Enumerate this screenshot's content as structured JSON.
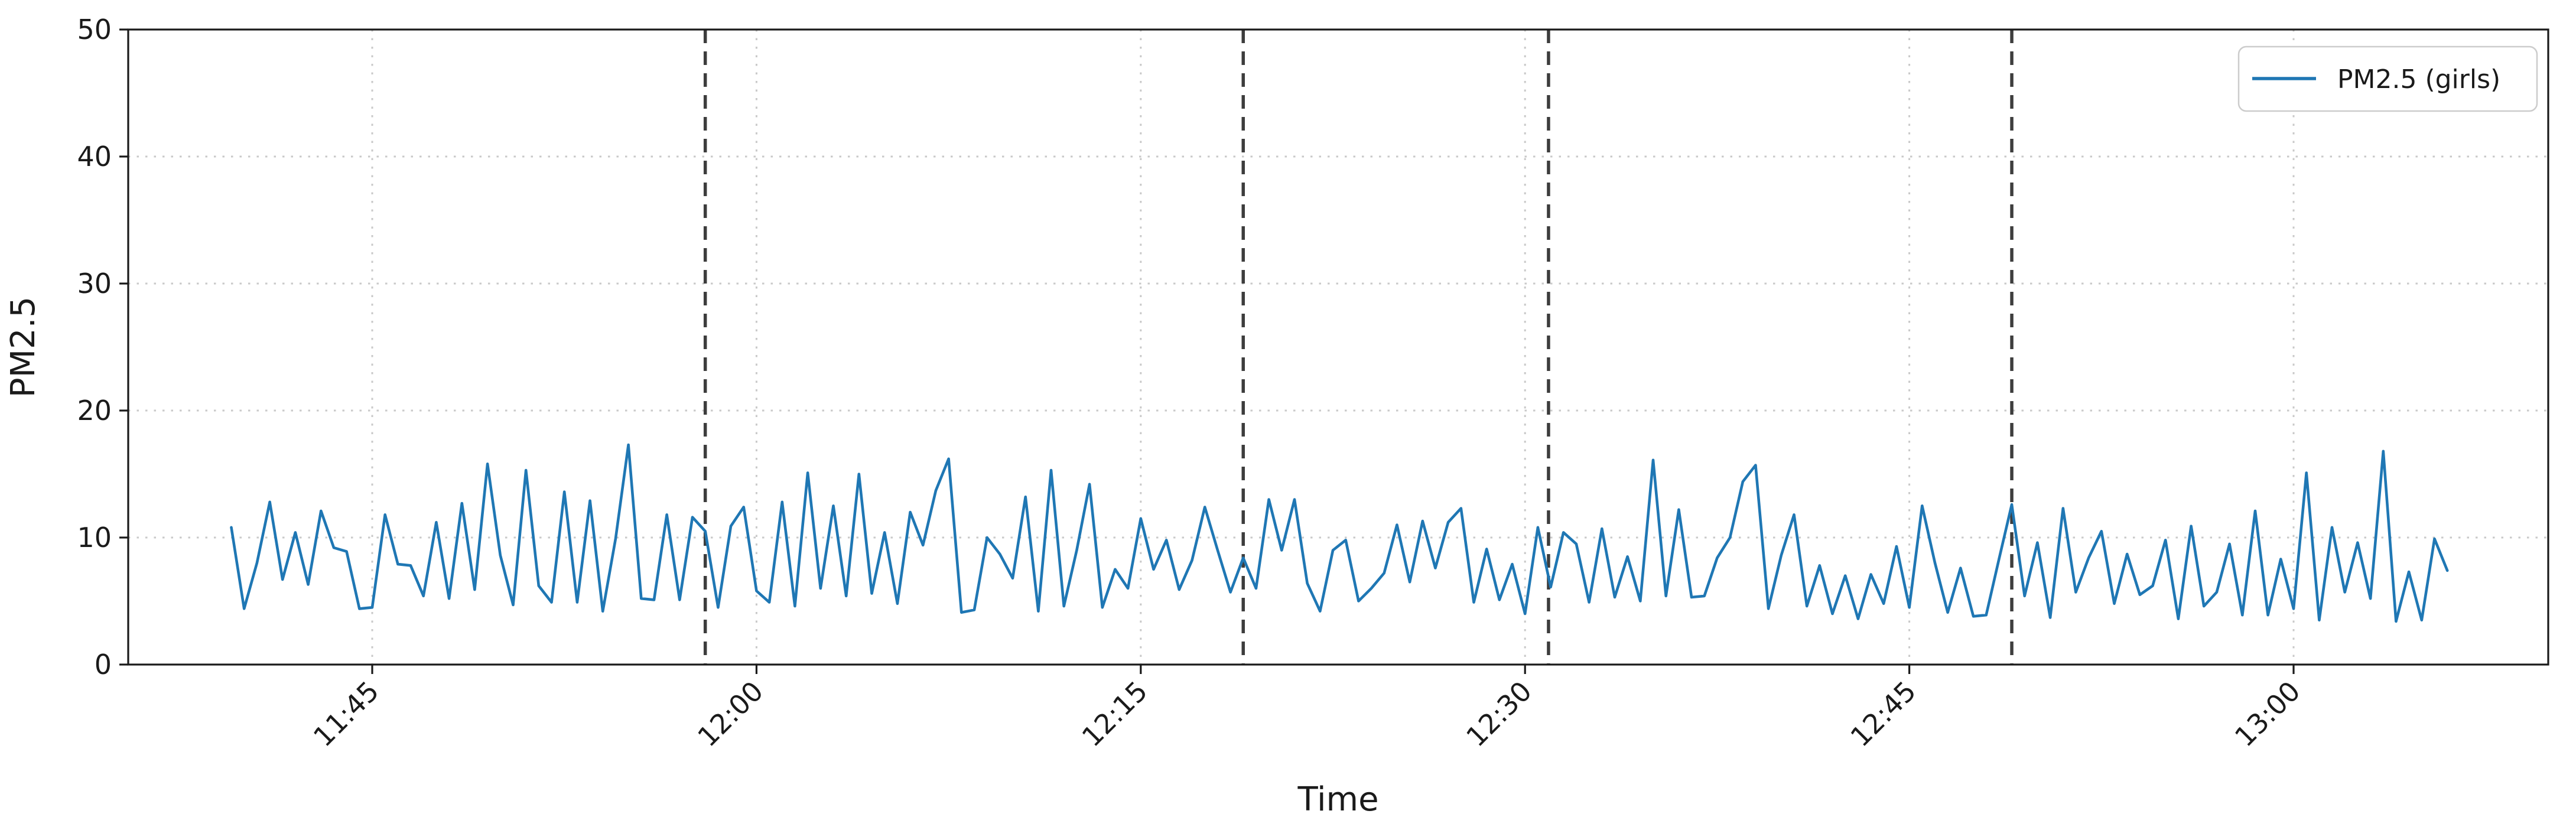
{
  "chart_data": {
    "type": "line",
    "title": "",
    "xlabel": "Time",
    "ylabel": "PM2.5",
    "ylim": [
      0,
      50
    ],
    "yticks": [
      0,
      10,
      20,
      30,
      40,
      50
    ],
    "xticks": [
      "11:45",
      "12:00",
      "12:15",
      "12:30",
      "12:45",
      "13:00"
    ],
    "grid": "dotted, both axes, light gray",
    "legend": {
      "position": "upper right",
      "entries": [
        {
          "label": "PM2.5 (girls)",
          "color": "#1f77b4"
        }
      ]
    },
    "dashed_vlines": {
      "times": [
        "11:58:00",
        "12:19:00",
        "12:30:55",
        "12:49:00"
      ],
      "color": "#3d3d3d",
      "style": "dashed"
    },
    "series": [
      {
        "name": "PM2.5 (girls)",
        "color": "#1f77b4",
        "start_time": "11:39:30",
        "interval_seconds": 30,
        "values": [
          10.8,
          4.4,
          8.0,
          12.8,
          6.7,
          10.4,
          6.3,
          12.1,
          9.2,
          8.9,
          4.4,
          4.5,
          11.8,
          7.9,
          7.8,
          5.4,
          11.2,
          5.2,
          12.7,
          5.9,
          15.8,
          8.6,
          4.7,
          15.3,
          6.2,
          4.9,
          13.6,
          4.9,
          12.9,
          4.2,
          9.9,
          17.3,
          5.2,
          5.1,
          11.8,
          5.1,
          11.6,
          10.5,
          4.5,
          10.9,
          12.4,
          5.8,
          4.9,
          12.8,
          4.6,
          15.1,
          6.0,
          12.5,
          5.4,
          15.0,
          5.6,
          10.4,
          4.8,
          12.0,
          9.4,
          13.7,
          16.2,
          4.1,
          4.3,
          10.0,
          8.7,
          6.8,
          13.2,
          4.2,
          15.3,
          4.6,
          9.0,
          14.2,
          4.5,
          7.5,
          6.0,
          11.5,
          7.5,
          9.8,
          5.9,
          8.2,
          12.4,
          9.0,
          5.7,
          8.4,
          6.0,
          13.0,
          9.0,
          13.0,
          6.4,
          4.2,
          9.0,
          9.8,
          5.0,
          6.0,
          7.2,
          11.0,
          6.5,
          11.3,
          7.6,
          11.2,
          12.3,
          4.9,
          9.1,
          5.1,
          7.9,
          4.0,
          10.8,
          6.1,
          10.4,
          9.5,
          4.9,
          10.7,
          5.3,
          8.5,
          5.0,
          16.1,
          5.4,
          12.2,
          5.3,
          5.4,
          8.4,
          10.0,
          14.4,
          15.7,
          4.4,
          8.6,
          11.8,
          4.6,
          7.8,
          4.0,
          7.0,
          3.6,
          7.1,
          4.8,
          9.3,
          4.5,
          12.5,
          8.0,
          4.1,
          7.6,
          3.8,
          3.9,
          8.3,
          12.6,
          5.4,
          9.6,
          3.7,
          12.3,
          5.7,
          8.4,
          10.5,
          4.8,
          8.7,
          5.5,
          6.2,
          9.8,
          3.6,
          10.9,
          4.6,
          5.7,
          9.5,
          3.9,
          12.1,
          3.9,
          8.3,
          4.4,
          15.1,
          3.5,
          10.8,
          5.7,
          9.6,
          5.2,
          16.8,
          3.4,
          7.3,
          3.5,
          9.9,
          7.4
        ]
      }
    ],
    "colors": {
      "line": "#1f77b4",
      "dashed_vline": "#3d3d3d",
      "grid": "#c9c9c9",
      "spine": "#1a1a1a",
      "text": "#1a1a1a",
      "legend_border": "#cccccc",
      "background": "#ffffff"
    }
  }
}
